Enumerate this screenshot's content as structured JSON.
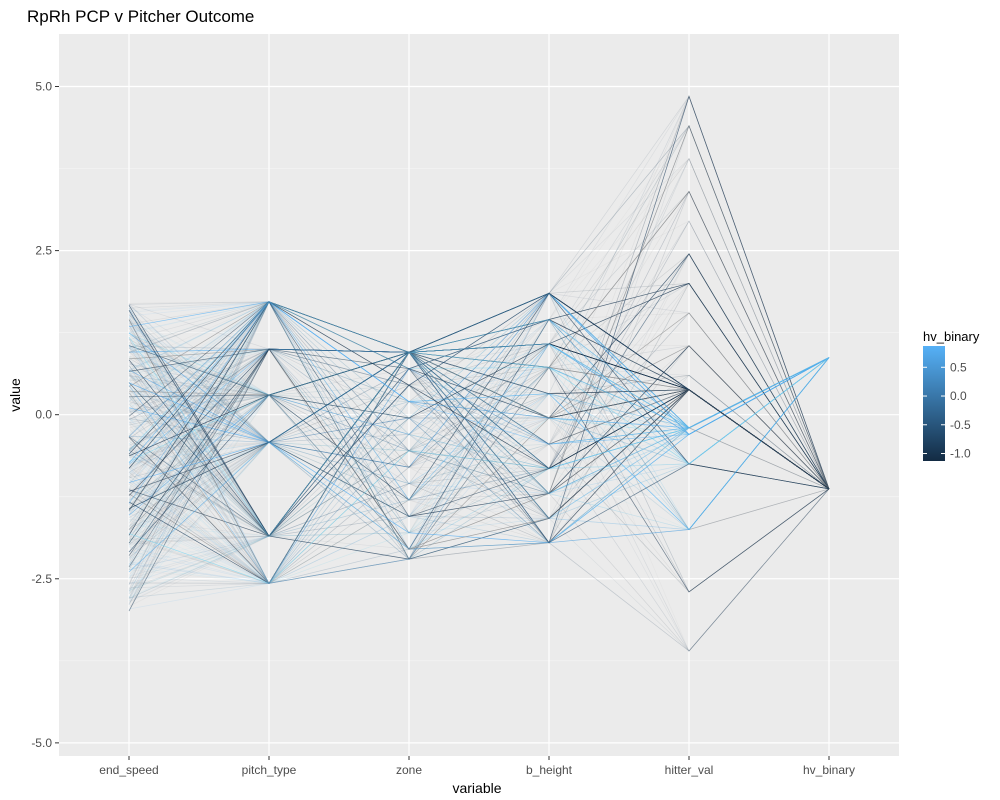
{
  "chart_data": {
    "type": "parallel-coordinates",
    "title": "RpRh PCP v Pitcher Outcome",
    "xlabel": "variable",
    "ylabel": "value",
    "categories": [
      "end_speed",
      "pitch_type",
      "zone",
      "b_height",
      "hitter_val",
      "hv_binary"
    ],
    "ylim": [
      -5.2,
      5.8
    ],
    "y_ticks": [
      -5.0,
      -2.5,
      0.0,
      2.5,
      5.0
    ],
    "y_tick_labels": [
      "-5.0",
      "-2.5",
      "0.0",
      "2.5",
      "5.0"
    ],
    "axis_values": {
      "end_speed_range": [
        -3.0,
        1.7
      ],
      "pitch_type": [
        1.72,
        1.0,
        0.3,
        -0.42,
        -1.85,
        -2.57
      ],
      "zone": [
        0.95,
        0.7,
        0.45,
        0.2,
        -0.05,
        -0.3,
        -0.55,
        -0.8,
        -1.05,
        -1.3,
        -1.55,
        -1.8,
        -2.05,
        -2.2
      ],
      "b_height": [
        1.85,
        1.45,
        1.08,
        0.72,
        0.32,
        -0.05,
        -0.45,
        -0.82,
        -1.2,
        -1.58,
        -1.95
      ],
      "hitter_val": [
        4.85,
        4.4,
        3.9,
        3.4,
        2.95,
        2.45,
        2.0,
        1.55,
        1.05,
        0.6,
        0.38,
        -0.2,
        -0.75,
        -1.75,
        -2.7,
        -3.6
      ],
      "hv_binary": [
        0.87,
        -1.13
      ]
    },
    "legend": {
      "title": "hv_binary",
      "labels": [
        "0.5",
        "0.0",
        "-0.5",
        "-1.0"
      ],
      "values": [
        0.5,
        0.0,
        -0.5,
        -1.0
      ],
      "range": [
        -1.13,
        0.87
      ],
      "color_low": "#132B43",
      "color_high": "#56B1F7",
      "placement": "right"
    },
    "panel_background": "#EBEBEB",
    "grid": true
  }
}
